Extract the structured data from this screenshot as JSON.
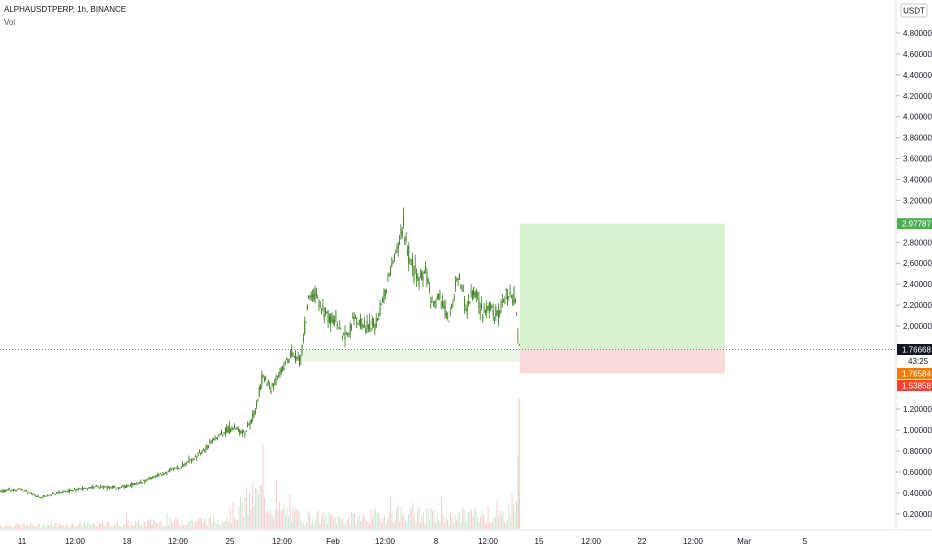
{
  "legend": {
    "symbol_line": "ALPHAUSDTPERP, 1h, BINANCE",
    "volume_label": "Vol"
  },
  "currency_button": "USDT",
  "colors": {
    "candle": "#3a7d1f",
    "target_zone": "#cbeec0",
    "stop_zone": "#f9d4d4",
    "price_line": "#131722",
    "target_tag": "#4caf50",
    "entry_tag": "#f57c00",
    "stop_tag": "#f44336"
  },
  "chart_data": {
    "type": "line",
    "title": "ALPHAUSDTPERP, 1h, BINANCE",
    "x_axis_ticks": [
      "11",
      "12:00",
      "18",
      "12:00",
      "25",
      "12:00",
      "Feb",
      "12:00",
      "8",
      "12:00",
      "15",
      "12:00",
      "22",
      "12:00",
      "Mar",
      "5"
    ],
    "y_axis_ticks": [
      "4.80000",
      "4.60000",
      "4.40000",
      "4.20000",
      "4.00000",
      "3.80000",
      "3.60000",
      "3.40000",
      "3.20000",
      "3.00000",
      "2.80000",
      "2.60000",
      "2.40000",
      "2.20000",
      "2.00000",
      "1.20000",
      "1.00000",
      "0.80000",
      "0.60000",
      "0.40000",
      "0.20000"
    ],
    "ylim": [
      0.1,
      5.0
    ],
    "price_series": [
      {
        "x": 0,
        "y": 0.42
      },
      {
        "x": 20,
        "y": 0.44
      },
      {
        "x": 40,
        "y": 0.36
      },
      {
        "x": 60,
        "y": 0.41
      },
      {
        "x": 80,
        "y": 0.44
      },
      {
        "x": 100,
        "y": 0.46
      },
      {
        "x": 120,
        "y": 0.45
      },
      {
        "x": 140,
        "y": 0.5
      },
      {
        "x": 160,
        "y": 0.58
      },
      {
        "x": 180,
        "y": 0.65
      },
      {
        "x": 200,
        "y": 0.78
      },
      {
        "x": 215,
        "y": 0.92
      },
      {
        "x": 230,
        "y": 1.02
      },
      {
        "x": 245,
        "y": 0.98
      },
      {
        "x": 255,
        "y": 1.18
      },
      {
        "x": 262,
        "y": 1.52
      },
      {
        "x": 270,
        "y": 1.4
      },
      {
        "x": 280,
        "y": 1.55
      },
      {
        "x": 290,
        "y": 1.72
      },
      {
        "x": 300,
        "y": 1.66
      },
      {
        "x": 308,
        "y": 2.25
      },
      {
        "x": 315,
        "y": 2.3
      },
      {
        "x": 325,
        "y": 2.1
      },
      {
        "x": 335,
        "y": 2.05
      },
      {
        "x": 345,
        "y": 1.88
      },
      {
        "x": 355,
        "y": 2.08
      },
      {
        "x": 365,
        "y": 1.98
      },
      {
        "x": 375,
        "y": 2.02
      },
      {
        "x": 385,
        "y": 2.32
      },
      {
        "x": 395,
        "y": 2.68
      },
      {
        "x": 403,
        "y": 2.95
      },
      {
        "x": 410,
        "y": 2.58
      },
      {
        "x": 418,
        "y": 2.42
      },
      {
        "x": 425,
        "y": 2.55
      },
      {
        "x": 432,
        "y": 2.2
      },
      {
        "x": 440,
        "y": 2.3
      },
      {
        "x": 448,
        "y": 2.05
      },
      {
        "x": 458,
        "y": 2.5
      },
      {
        "x": 466,
        "y": 2.18
      },
      {
        "x": 474,
        "y": 2.35
      },
      {
        "x": 482,
        "y": 2.1
      },
      {
        "x": 490,
        "y": 2.2
      },
      {
        "x": 498,
        "y": 2.12
      },
      {
        "x": 506,
        "y": 2.28
      },
      {
        "x": 514,
        "y": 2.3
      },
      {
        "x": 519,
        "y": 1.8
      }
    ],
    "volume_series": [
      {
        "x": 0,
        "y": 0.1
      },
      {
        "x": 60,
        "y": 0.12
      },
      {
        "x": 120,
        "y": 0.15
      },
      {
        "x": 180,
        "y": 0.22
      },
      {
        "x": 220,
        "y": 0.25
      },
      {
        "x": 262,
        "y": 1.0
      },
      {
        "x": 275,
        "y": 0.55
      },
      {
        "x": 300,
        "y": 0.35
      },
      {
        "x": 350,
        "y": 0.28
      },
      {
        "x": 400,
        "y": 0.45
      },
      {
        "x": 450,
        "y": 0.3
      },
      {
        "x": 470,
        "y": 0.42
      },
      {
        "x": 500,
        "y": 0.3
      },
      {
        "x": 519,
        "y": 0.9
      }
    ],
    "position_tool": {
      "target": 2.97787,
      "entry": 1.76584,
      "stop": 1.53858
    },
    "current_price": 1.76668,
    "countdown": "43:25",
    "price_labels": {
      "target": "2.97787",
      "current": "1.76668",
      "countdown": "43:25",
      "entry": "1.76584",
      "stop": "1.53858"
    },
    "grid": false
  }
}
